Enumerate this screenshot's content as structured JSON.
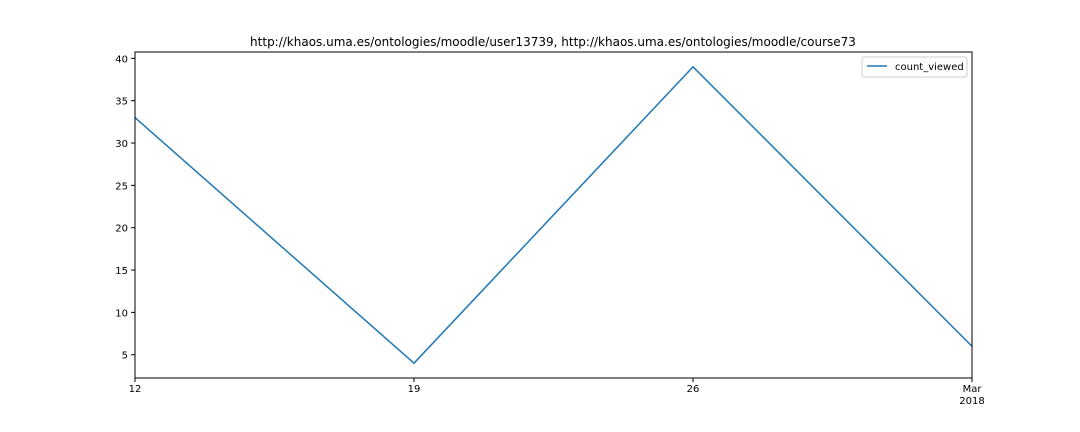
{
  "chart_data": {
    "type": "line",
    "title": "http://khaos.uma.es/ontologies/moodle/user13739, http://khaos.uma.es/ontologies/moodle/course73",
    "xlabel": "",
    "ylabel": "",
    "x": [
      "2018-02-12",
      "2018-02-19",
      "2018-02-26",
      "2018-03-05"
    ],
    "series": [
      {
        "name": "count_viewed",
        "values": [
          33,
          4,
          39,
          6
        ],
        "color": "#1f77b4"
      }
    ],
    "x_ticks": [
      {
        "x": "2018-02-12",
        "label": "12"
      },
      {
        "x": "2018-02-19",
        "label": "19"
      },
      {
        "x": "2018-02-26",
        "label": "26"
      },
      {
        "x": "2018-03-05",
        "label": "Mar\n2018"
      }
    ],
    "y_ticks": [
      5,
      10,
      15,
      20,
      25,
      30,
      35,
      40
    ],
    "ylim": [
      2.25,
      40.75
    ],
    "grid": false,
    "legend_position": "top-right"
  }
}
